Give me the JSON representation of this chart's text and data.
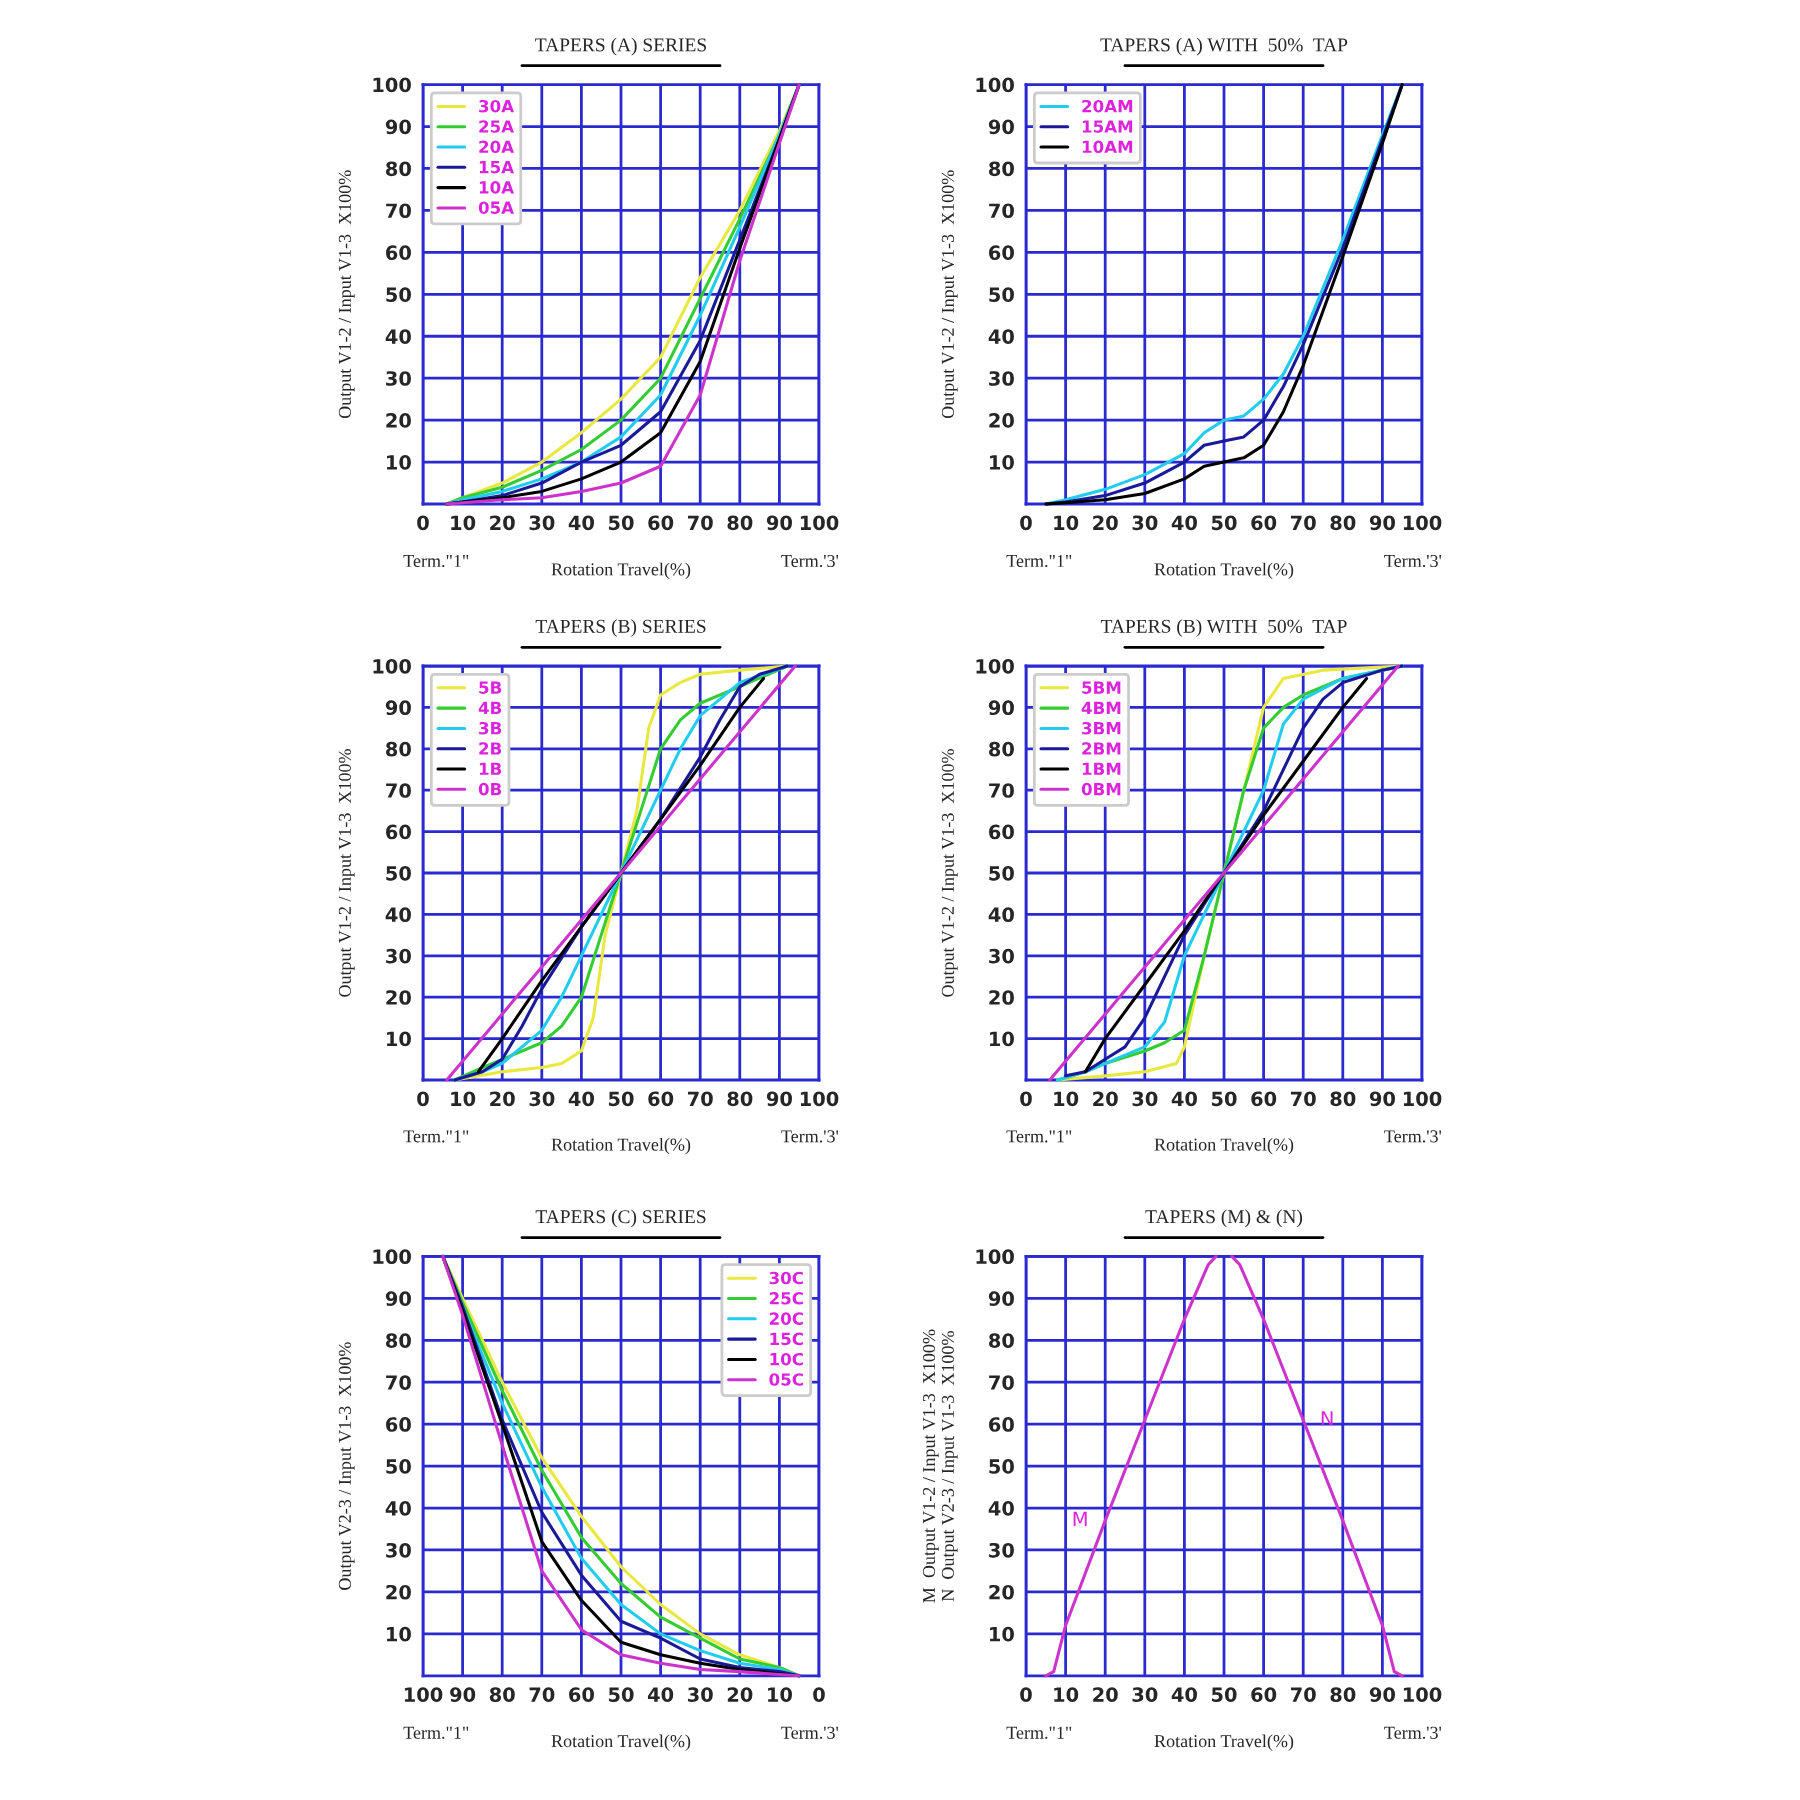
{
  "chart_data": [
    {
      "type": "line",
      "title": "TAPERS (A) SERIES",
      "xlabel": "Rotation Travel(%)",
      "ylabel": "Output V1-2 / Input V1-3  X100%",
      "xlim": [
        0,
        100
      ],
      "ylim": [
        0,
        100
      ],
      "xticks": [
        0,
        10,
        20,
        30,
        40,
        50,
        60,
        70,
        80,
        90,
        100
      ],
      "yticks": [
        10,
        20,
        30,
        40,
        50,
        60,
        70,
        80,
        90,
        100
      ],
      "grid": true,
      "legend": "upper left",
      "annotations": [
        "Term.\"1\"",
        "Term.'3'"
      ],
      "series": [
        {
          "name": "30A",
          "color": "#e8e840",
          "x": [
            6,
            10,
            20,
            30,
            40,
            50,
            60,
            70,
            80,
            90,
            95
          ],
          "values": [
            0,
            1.5,
            5,
            10,
            17,
            25,
            35,
            54,
            70,
            89,
            100
          ]
        },
        {
          "name": "25A",
          "color": "#33cc33",
          "x": [
            6,
            10,
            20,
            30,
            40,
            50,
            60,
            70,
            80,
            90,
            95
          ],
          "values": [
            0,
            1.5,
            4,
            8,
            13,
            20,
            30,
            49,
            68,
            88,
            100
          ]
        },
        {
          "name": "20A",
          "color": "#22ccee",
          "x": [
            6,
            10,
            20,
            30,
            40,
            50,
            60,
            70,
            80,
            90,
            95
          ],
          "values": [
            0,
            1,
            3,
            6,
            10,
            16,
            26,
            45,
            66,
            88,
            100
          ]
        },
        {
          "name": "15A",
          "color": "#1a1a99",
          "x": [
            6,
            10,
            20,
            30,
            40,
            50,
            60,
            70,
            80,
            90,
            95
          ],
          "values": [
            0,
            0.5,
            2,
            5,
            10,
            14,
            22,
            39,
            63,
            87,
            100
          ]
        },
        {
          "name": "10A",
          "color": "#000000",
          "x": [
            6,
            10,
            20,
            30,
            40,
            50,
            60,
            70,
            80,
            90,
            95
          ],
          "values": [
            0,
            0.5,
            1.5,
            3,
            6,
            10,
            17,
            34,
            61,
            87,
            100
          ]
        },
        {
          "name": "05A",
          "color": "#cc33cc",
          "x": [
            6,
            10,
            20,
            30,
            40,
            50,
            60,
            70,
            80,
            90,
            95
          ],
          "values": [
            0,
            0.3,
            1,
            1.5,
            3,
            5,
            9,
            26,
            58,
            86,
            100
          ]
        }
      ]
    },
    {
      "type": "line",
      "title": "TAPERS (A) WITH  50%  TAP",
      "xlabel": "Rotation Travel(%)",
      "ylabel": "Output V1-2 / Input V1-3  X100%",
      "xlim": [
        0,
        100
      ],
      "ylim": [
        0,
        100
      ],
      "xticks": [
        0,
        10,
        20,
        30,
        40,
        50,
        60,
        70,
        80,
        90,
        100
      ],
      "yticks": [
        10,
        20,
        30,
        40,
        50,
        60,
        70,
        80,
        90,
        100
      ],
      "grid": true,
      "legend": "upper left",
      "annotations": [
        "Term.\"1\"",
        "Term.'3'"
      ],
      "series": [
        {
          "name": "20AM",
          "color": "#22ccee",
          "x": [
            5,
            10,
            20,
            30,
            40,
            45,
            50,
            55,
            60,
            65,
            70,
            80,
            90,
            95
          ],
          "values": [
            0,
            1,
            3.5,
            7,
            12,
            17,
            20,
            21,
            25,
            31,
            40,
            63,
            88,
            100
          ]
        },
        {
          "name": "15AM",
          "color": "#1a1a99",
          "x": [
            5,
            10,
            20,
            30,
            40,
            45,
            50,
            55,
            60,
            65,
            70,
            80,
            90,
            95
          ],
          "values": [
            0,
            0.5,
            2,
            5,
            10,
            14,
            15,
            16,
            20,
            28,
            38,
            61,
            87,
            100
          ]
        },
        {
          "name": "10AM",
          "color": "#000000",
          "x": [
            5,
            10,
            20,
            30,
            40,
            45,
            50,
            55,
            60,
            65,
            70,
            80,
            90,
            95
          ],
          "values": [
            0,
            0.3,
            1,
            2.5,
            6,
            9,
            10,
            11,
            14,
            22,
            33,
            59,
            86,
            100
          ]
        }
      ]
    },
    {
      "type": "line",
      "title": "TAPERS (B) SERIES",
      "xlabel": "Rotation Travel(%)",
      "ylabel": "Output V1-2 / Input V1-3  X100%",
      "xlim": [
        0,
        100
      ],
      "ylim": [
        0,
        100
      ],
      "xticks": [
        0,
        10,
        20,
        30,
        40,
        50,
        60,
        70,
        80,
        90,
        100
      ],
      "yticks": [
        10,
        20,
        30,
        40,
        50,
        60,
        70,
        80,
        90,
        100
      ],
      "grid": true,
      "legend": "upper left",
      "annotations": [
        "Term.\"1\"",
        "Term.'3'"
      ],
      "series": [
        {
          "name": "5B",
          "color": "#e8e840",
          "x": [
            8,
            20,
            30,
            35,
            40,
            43,
            46,
            50,
            54,
            57,
            60,
            65,
            70,
            80,
            92
          ],
          "values": [
            0,
            2,
            3,
            4,
            7,
            15,
            35,
            50,
            65,
            85,
            93,
            96,
            98,
            99,
            100
          ]
        },
        {
          "name": "4B",
          "color": "#33cc33",
          "x": [
            8,
            15,
            20,
            30,
            35,
            40,
            45,
            50,
            55,
            60,
            65,
            70,
            80,
            92
          ],
          "values": [
            0,
            3,
            5,
            9,
            13,
            20,
            35,
            50,
            65,
            80,
            87,
            91,
            95,
            100
          ]
        },
        {
          "name": "3B",
          "color": "#22ccee",
          "x": [
            8,
            15,
            20,
            30,
            35,
            40,
            45,
            50,
            55,
            60,
            65,
            70,
            80,
            92
          ],
          "values": [
            0,
            2,
            4,
            12,
            20,
            30,
            40,
            50,
            60,
            70,
            80,
            88,
            96,
            100
          ]
        },
        {
          "name": "2B",
          "color": "#1a1a99",
          "x": [
            8,
            15,
            20,
            25,
            30,
            40,
            50,
            60,
            70,
            75,
            80,
            85,
            92
          ],
          "values": [
            0,
            2,
            5,
            13,
            22,
            37,
            50,
            63,
            78,
            87,
            95,
            98,
            100
          ]
        },
        {
          "name": "1B",
          "color": "#000000",
          "x": [
            14,
            20,
            30,
            40,
            50,
            60,
            70,
            80,
            86
          ],
          "values": [
            2,
            10,
            24,
            37,
            50,
            63,
            76,
            90,
            97
          ]
        },
        {
          "name": "0B",
          "color": "#cc33cc",
          "x": [
            6,
            94
          ],
          "values": [
            0,
            100
          ]
        }
      ]
    },
    {
      "type": "line",
      "title": "TAPERS (B) WITH  50%  TAP",
      "xlabel": "Rotation Travel(%)",
      "ylabel": "Output V1-2 / Input V1-3  X100%",
      "xlim": [
        0,
        100
      ],
      "ylim": [
        0,
        100
      ],
      "xticks": [
        0,
        10,
        20,
        30,
        40,
        50,
        60,
        70,
        80,
        90,
        100
      ],
      "yticks": [
        10,
        20,
        30,
        40,
        50,
        60,
        70,
        80,
        90,
        100
      ],
      "grid": true,
      "legend": "upper left",
      "annotations": [
        "Term.\"1\"",
        "Term.'3'"
      ],
      "series": [
        {
          "name": "5BM",
          "color": "#e8e840",
          "x": [
            8,
            20,
            30,
            38,
            40,
            45,
            50,
            55,
            60,
            65,
            75,
            95
          ],
          "values": [
            0,
            1,
            2,
            4,
            8,
            30,
            50,
            70,
            90,
            97,
            99,
            100
          ]
        },
        {
          "name": "4BM",
          "color": "#33cc33",
          "x": [
            8,
            15,
            20,
            30,
            35,
            40,
            45,
            50,
            55,
            60,
            65,
            70,
            80,
            95
          ],
          "values": [
            0,
            2,
            4,
            7,
            9,
            12,
            30,
            50,
            70,
            85,
            90,
            93,
            97,
            100
          ]
        },
        {
          "name": "3BM",
          "color": "#22ccee",
          "x": [
            8,
            15,
            20,
            30,
            35,
            40,
            50,
            60,
            65,
            70,
            80,
            95
          ],
          "values": [
            0,
            2,
            4,
            8,
            14,
            30,
            50,
            70,
            86,
            92,
            97,
            100
          ]
        },
        {
          "name": "2BM",
          "color": "#1a1a99",
          "x": [
            10,
            15,
            20,
            25,
            30,
            40,
            50,
            60,
            70,
            75,
            80,
            90,
            95
          ],
          "values": [
            1,
            2,
            5,
            8,
            15,
            35,
            50,
            65,
            85,
            92,
            96,
            99,
            100
          ]
        },
        {
          "name": "1BM",
          "color": "#000000",
          "x": [
            15,
            20,
            30,
            40,
            50,
            60,
            70,
            80,
            86
          ],
          "values": [
            2,
            10,
            23,
            36,
            50,
            64,
            77,
            90,
            97
          ]
        },
        {
          "name": "0BM",
          "color": "#cc33cc",
          "x": [
            6,
            94
          ],
          "values": [
            0,
            100
          ]
        }
      ]
    },
    {
      "type": "line",
      "title": "TAPERS (C) SERIES",
      "xlabel": "Rotation Travel(%)",
      "ylabel": "Output V2-3 / Input V1-3  X100%",
      "xlim": [
        100,
        0
      ],
      "ylim": [
        0,
        100
      ],
      "xticks": [
        100,
        90,
        80,
        70,
        60,
        50,
        40,
        30,
        20,
        10,
        0
      ],
      "yticks": [
        10,
        20,
        30,
        40,
        50,
        60,
        70,
        80,
        90,
        100
      ],
      "grid": true,
      "legend": "upper right",
      "annotations": [
        "Term.\"1\"",
        "Term.'3'"
      ],
      "series": [
        {
          "name": "30C",
          "color": "#e8e840",
          "x": [
            95,
            90,
            80,
            70,
            60,
            50,
            40,
            30,
            20,
            10,
            5
          ],
          "values": [
            100,
            90,
            70,
            52,
            38,
            26,
            17,
            10,
            5,
            2,
            0
          ]
        },
        {
          "name": "25C",
          "color": "#33cc33",
          "x": [
            95,
            90,
            80,
            70,
            60,
            50,
            40,
            30,
            20,
            10,
            5
          ],
          "values": [
            100,
            89,
            68,
            49,
            33,
            22,
            14,
            9,
            4,
            2,
            0
          ]
        },
        {
          "name": "20C",
          "color": "#22ccee",
          "x": [
            95,
            90,
            80,
            70,
            60,
            50,
            40,
            30,
            20,
            10,
            5
          ],
          "values": [
            100,
            88,
            65,
            45,
            28,
            17,
            10,
            6,
            3,
            1.5,
            0
          ]
        },
        {
          "name": "15C",
          "color": "#1a1a99",
          "x": [
            95,
            90,
            80,
            70,
            60,
            50,
            40,
            30,
            20,
            10,
            5
          ],
          "values": [
            100,
            88,
            61,
            39,
            24,
            13,
            9,
            4,
            2,
            1,
            0
          ]
        },
        {
          "name": "10C",
          "color": "#000000",
          "x": [
            95,
            90,
            80,
            70,
            60,
            50,
            40,
            30,
            20,
            10,
            5
          ],
          "values": [
            100,
            87,
            60,
            32,
            18,
            8,
            5,
            3,
            1.5,
            0.5,
            0
          ]
        },
        {
          "name": "05C",
          "color": "#cc33cc",
          "x": [
            95,
            90,
            80,
            70,
            60,
            50,
            40,
            30,
            20,
            10,
            5
          ],
          "values": [
            100,
            86,
            55,
            25,
            11,
            5,
            3,
            1.5,
            1,
            0.3,
            0
          ]
        }
      ]
    },
    {
      "type": "line",
      "title": "TAPERS (M) & (N)",
      "xlabel": "Rotation Travel(%)",
      "ylabel": "M  Output V1-2 / Input V1-3  X100%\nN  Output V2-3 / Input V1-3  X100%",
      "xlim": [
        0,
        100
      ],
      "ylim": [
        0,
        100
      ],
      "xticks": [
        0,
        10,
        20,
        30,
        40,
        50,
        60,
        70,
        80,
        90,
        100
      ],
      "yticks": [
        10,
        20,
        30,
        40,
        50,
        60,
        70,
        80,
        90,
        100
      ],
      "grid": true,
      "legend": false,
      "annotations": [
        "Term.\"1\"",
        "Term.'3'"
      ],
      "series": [
        {
          "name": "M",
          "color": "#cc33cc",
          "x": [
            5,
            7,
            10,
            20,
            30,
            40,
            46,
            48
          ],
          "values": [
            0,
            1,
            12,
            37,
            61,
            85,
            98,
            100
          ]
        },
        {
          "name": "N",
          "color": "#cc33cc",
          "x": [
            52,
            54,
            60,
            70,
            80,
            90,
            93,
            95
          ],
          "values": [
            100,
            98,
            85,
            61,
            37,
            12,
            1,
            0
          ]
        }
      ]
    }
  ]
}
